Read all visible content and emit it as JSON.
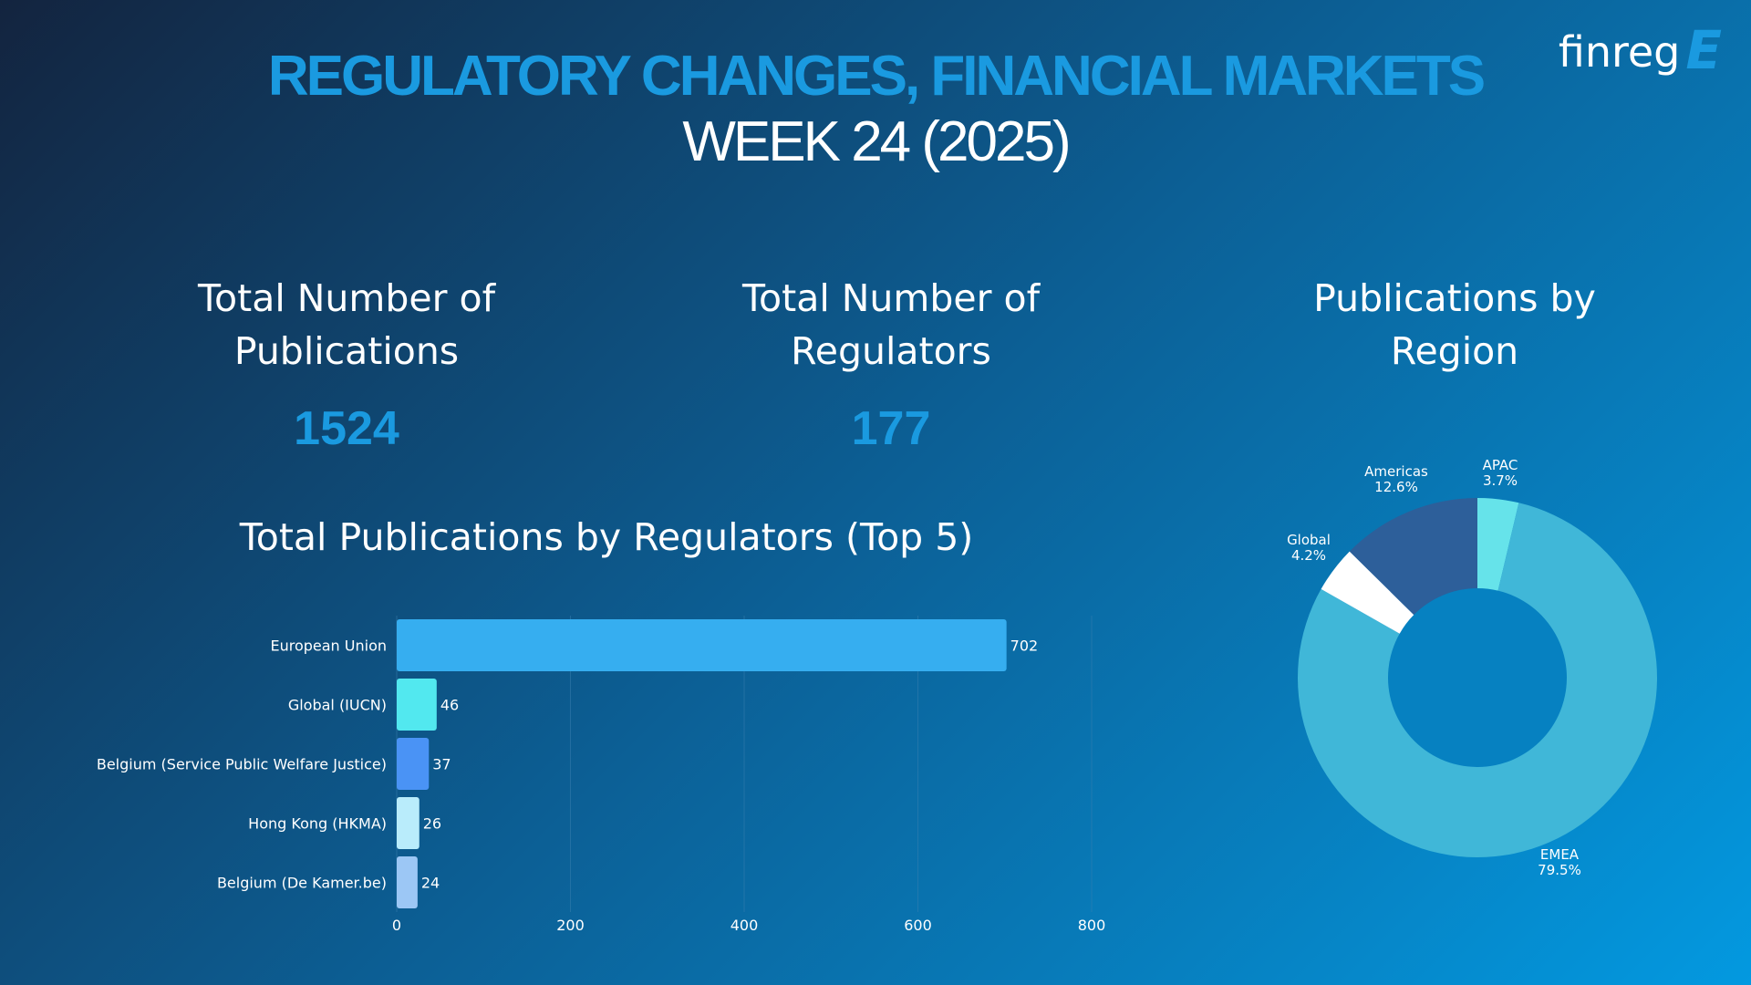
{
  "header": {
    "title": "REGULATORY CHANGES, FINANCIAL MARKETS",
    "subtitle": "WEEK 24 (2025)",
    "logo_text": "finreg",
    "logo_mark": "E"
  },
  "kpis": [
    {
      "label": "Total Number of Publications",
      "value": "1524"
    },
    {
      "label": "Total Number of Regulators",
      "value": "177"
    }
  ],
  "region_title": "Publications by Region",
  "bar_title": "Total Publications by Regulators (Top 5)",
  "colors": {
    "accent": "#1a9ae0",
    "grid": "#3a7fb0"
  },
  "chart_data": [
    {
      "type": "bar",
      "orientation": "horizontal",
      "title": "Total Publications by Regulators (Top 5)",
      "categories": [
        "European Union",
        "Global (IUCN)",
        "Belgium (Service Public Welfare Justice)",
        "Hong Kong (HKMA)",
        "Belgium (De Kamer.be)"
      ],
      "values": [
        702,
        46,
        37,
        26,
        24
      ],
      "colors": [
        "#36aef0",
        "#52e8ef",
        "#4a93f5",
        "#b9ecfb",
        "#9cc7f5"
      ],
      "xlim": [
        0,
        800
      ],
      "xticks": [
        0,
        200,
        400,
        600,
        800
      ],
      "xlabel": "",
      "ylabel": ""
    },
    {
      "type": "pie",
      "donut": true,
      "title": "Publications by Region",
      "slices": [
        {
          "label": "APAC",
          "percent": 3.7,
          "pct_label": "3.7%",
          "color": "#66e3ea"
        },
        {
          "label": "EMEA",
          "percent": 79.5,
          "pct_label": "79.5%",
          "color": "#40b7d8"
        },
        {
          "label": "Global",
          "percent": 4.2,
          "pct_label": "4.2%",
          "color": "#ffffff"
        },
        {
          "label": "Americas",
          "percent": 12.6,
          "pct_label": "12.6%",
          "color": "#2d5f9a"
        }
      ]
    }
  ]
}
